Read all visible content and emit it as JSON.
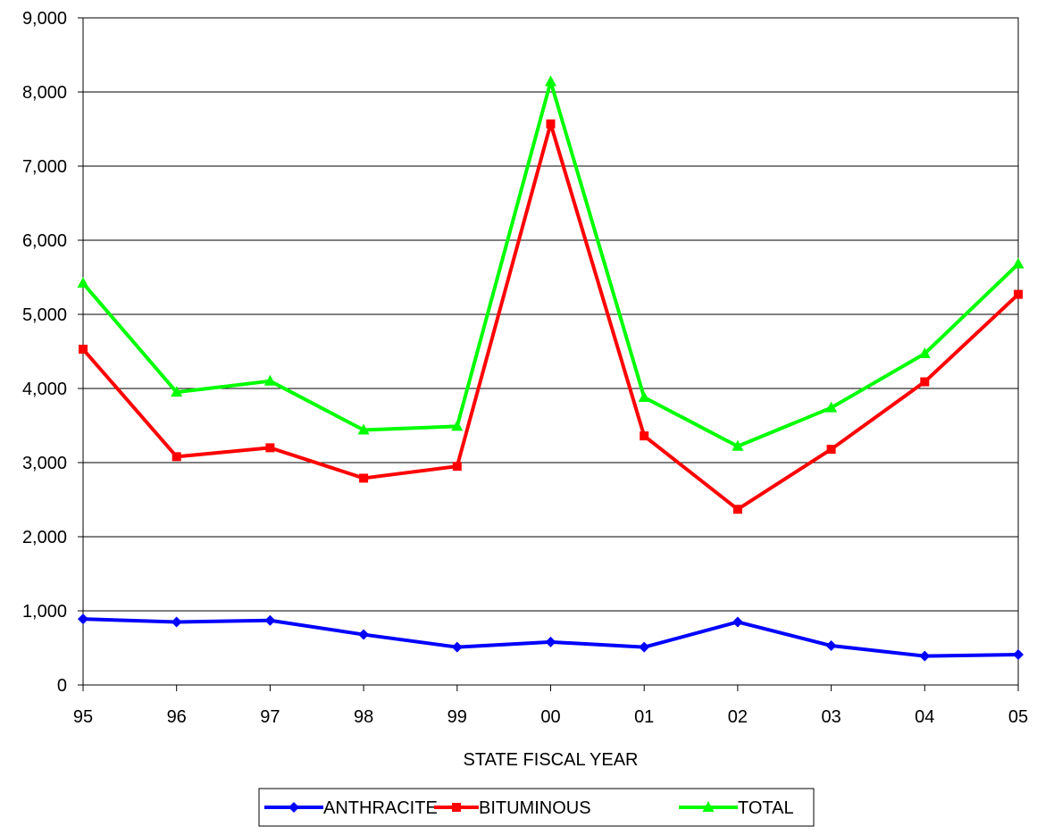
{
  "chart_data": {
    "type": "line",
    "title": "",
    "xlabel": "STATE FISCAL YEAR",
    "ylabel": "",
    "categories": [
      "95",
      "96",
      "97",
      "98",
      "99",
      "00",
      "01",
      "02",
      "03",
      "04",
      "05"
    ],
    "y_ticks": [
      "0",
      "1,000",
      "2,000",
      "3,000",
      "4,000",
      "5,000",
      "6,000",
      "7,000",
      "8,000",
      "9,000"
    ],
    "ylim": [
      0,
      9000
    ],
    "grid": "horizontal",
    "legend_position": "bottom-center",
    "series": [
      {
        "name": "ANTHRACITE",
        "color": "#0000ff",
        "marker": "diamond",
        "values": [
          890,
          850,
          870,
          680,
          510,
          580,
          510,
          850,
          530,
          390,
          410
        ]
      },
      {
        "name": "BITUMINOUS",
        "color": "#ff0000",
        "marker": "square",
        "values": [
          4530,
          3080,
          3200,
          2790,
          2950,
          7570,
          3360,
          2370,
          3180,
          4090,
          5270
        ]
      },
      {
        "name": "TOTAL",
        "color": "#00ff00",
        "marker": "triangle",
        "values": [
          5420,
          3950,
          4100,
          3440,
          3490,
          8140,
          3880,
          3220,
          3740,
          4470,
          5680
        ]
      }
    ]
  }
}
